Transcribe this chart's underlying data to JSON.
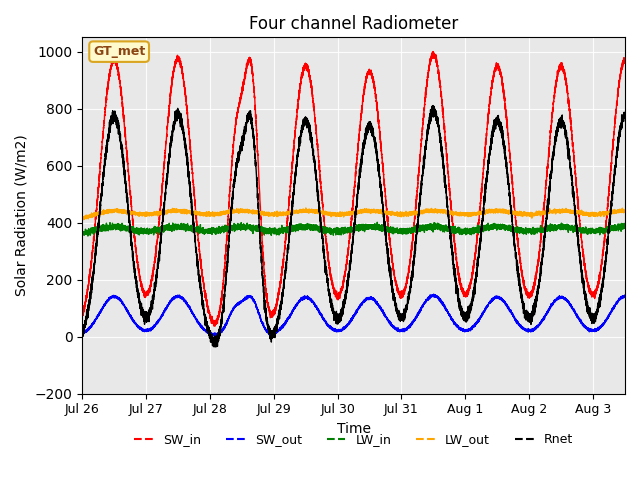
{
  "title": "Four channel Radiometer",
  "ylabel": "Solar Radiation (W/m2)",
  "xlabel": "Time",
  "ylim": [
    -200,
    1050
  ],
  "annotation_label": "GT_met",
  "legend_entries": [
    "SW_in",
    "SW_out",
    "LW_in",
    "LW_out",
    "Rnet"
  ],
  "legend_colors": [
    "red",
    "blue",
    "green",
    "orange",
    "black"
  ],
  "background_color": "#e8e8e8",
  "x_tick_labels": [
    "Jul 26",
    "Jul 27",
    "Jul 28",
    "Jul 29",
    "Jul 30",
    "Jul 31",
    "Aug 1",
    "Aug 2",
    "Aug 3"
  ]
}
